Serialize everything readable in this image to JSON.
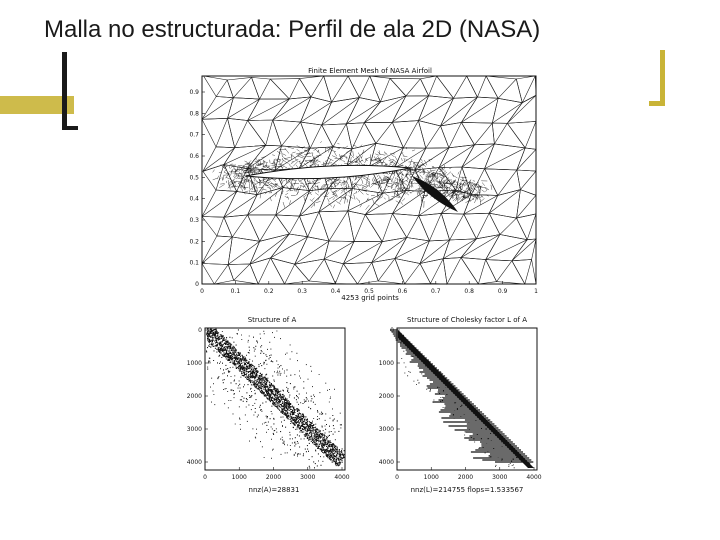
{
  "slide": {
    "title": "Malla no estructurada: Perfil de ala 2D (NASA)"
  },
  "colors": {
    "accent": "#c9b437",
    "ink": "#1a1a1a"
  },
  "mesh_plot": {
    "title": "Finite Element Mesh of NASA Airfoil",
    "xlabel": "4253 grid points",
    "x_ticks": [
      "0",
      "0.1",
      "0.2",
      "0.3",
      "0.4",
      "0.5",
      "0.6",
      "0.7",
      "0.8",
      "0.9",
      "1"
    ],
    "y_ticks": [
      "0",
      "0.1",
      "0.2",
      "0.3",
      "0.4",
      "0.5",
      "0.6",
      "0.7",
      "0.8",
      "0.9"
    ]
  },
  "matrix_a_plot": {
    "title": "Structure of A",
    "xlabel": "nnz(A)=28831",
    "x_ticks": [
      "0",
      "1000",
      "2000",
      "3000",
      "4000"
    ],
    "y_ticks": [
      "0",
      "1000",
      "2000",
      "3000",
      "4000"
    ]
  },
  "cholesky_plot": {
    "title": "Structure of Cholesky factor L of A",
    "xlabel": "nnz(L)=214755 flops=1.533567",
    "x_ticks": [
      "0",
      "1000",
      "2000",
      "3000",
      "4000"
    ],
    "y_ticks": [
      "0",
      "1000",
      "2000",
      "3000",
      "4000"
    ]
  }
}
